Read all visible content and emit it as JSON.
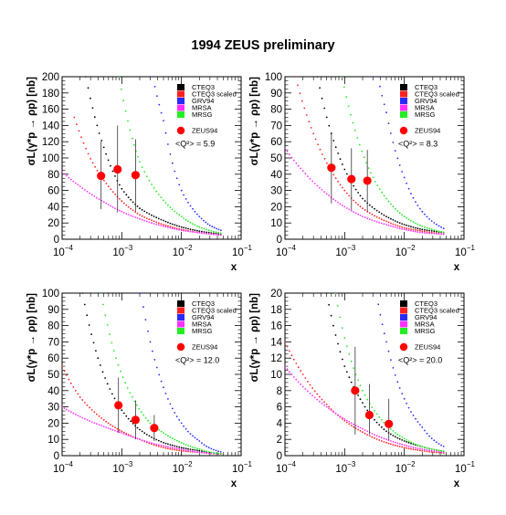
{
  "figure": {
    "title": "1994 ZEUS preliminary"
  },
  "colors": {
    "CTEQ3": "#000000",
    "CTEQ3 scaled": "#ff2020",
    "GRV94": "#2a2aff",
    "MRSA": "#ff30ff",
    "MRSG": "#22ee22",
    "ZEUS94": "#ff0000"
  },
  "chart_data": [
    {
      "type": "scatter",
      "panel": "top-left",
      "ylabel": "σL(γ*p → ρp) [nb]",
      "xlabel": "x",
      "x_scale": "log",
      "xlim": [
        0.0001,
        0.1
      ],
      "ylim": [
        0,
        200
      ],
      "y_ticks": [
        0,
        20,
        40,
        60,
        80,
        100,
        120,
        140,
        160,
        180,
        200
      ],
      "x_ticks": [
        "10-4",
        "10-3",
        "10-2",
        "10-1"
      ],
      "q2_label": "<Q²> = 5.9",
      "legend": [
        "CTEQ3",
        "CTEQ3 scaled",
        "GRV94",
        "MRSA",
        "MRSG",
        "ZEUS94"
      ],
      "series": [
        {
          "name": "CTEQ3",
          "x": [
            0.00025,
            0.0005,
            0.001,
            0.002,
            0.005,
            0.01,
            0.02,
            0.05
          ],
          "y": [
            200,
            113,
            62,
            38,
            23,
            15,
            10,
            6
          ]
        },
        {
          "name": "CTEQ3 scaled",
          "x": [
            0.00016,
            0.0003,
            0.0006,
            0.001,
            0.002,
            0.005,
            0.01,
            0.02,
            0.05
          ],
          "y": [
            150,
            99,
            65,
            47,
            30,
            18,
            12,
            8,
            5
          ]
        },
        {
          "name": "GRV94",
          "x": [
            0.0033,
            0.005,
            0.01,
            0.02,
            0.03,
            0.05
          ],
          "y": [
            200,
            146,
            60,
            28,
            17,
            10
          ]
        },
        {
          "name": "MRSA",
          "x": [
            0.0001,
            0.0002,
            0.0005,
            0.001,
            0.002,
            0.005,
            0.01,
            0.02,
            0.05
          ],
          "y": [
            83,
            65,
            46,
            34,
            25,
            16,
            11,
            8,
            5
          ]
        },
        {
          "name": "MRSG",
          "x": [
            0.0009,
            0.0015,
            0.002,
            0.005,
            0.01,
            0.02,
            0.05
          ],
          "y": [
            200,
            124,
            95,
            48,
            28,
            15,
            7
          ]
        },
        {
          "name": "ZEUS94",
          "x": [
            0.00045,
            0.00085,
            0.0017
          ],
          "y": [
            78,
            86,
            79
          ],
          "yerr_low": [
            37,
            33,
            34
          ],
          "yerr_high": [
            120,
            140,
            123
          ]
        }
      ]
    },
    {
      "type": "scatter",
      "panel": "top-right",
      "ylabel": "σL(γ*p → ρp) [nb]",
      "xlabel": "x",
      "x_scale": "log",
      "xlim": [
        0.0001,
        0.1
      ],
      "ylim": [
        0,
        100
      ],
      "y_ticks": [
        0,
        10,
        20,
        30,
        40,
        50,
        60,
        70,
        80,
        90,
        100
      ],
      "x_ticks": [
        "10-4",
        "10-3",
        "10-2",
        "10-1"
      ],
      "q2_label": "<Q²> = 8.3",
      "legend": [
        "CTEQ3",
        "CTEQ3 scaled",
        "GRV94",
        "MRSA",
        "MRSG",
        "ZEUS94"
      ],
      "series": [
        {
          "name": "CTEQ3",
          "x": [
            0.00035,
            0.0006,
            0.001,
            0.002,
            0.005,
            0.01,
            0.02,
            0.05
          ],
          "y": [
            100,
            65,
            43,
            25,
            14,
            9,
            6,
            4
          ]
        },
        {
          "name": "CTEQ3 scaled",
          "x": [
            0.00015,
            0.0003,
            0.0006,
            0.001,
            0.002,
            0.005,
            0.01,
            0.02,
            0.05
          ],
          "y": [
            100,
            65,
            42,
            30,
            19,
            11,
            7,
            5,
            3
          ]
        },
        {
          "name": "GRV94",
          "x": [
            0.0036,
            0.005,
            0.01,
            0.02,
            0.05
          ],
          "y": [
            100,
            78,
            38,
            17,
            6
          ]
        },
        {
          "name": "MRSA",
          "x": [
            0.0001,
            0.0002,
            0.0005,
            0.001,
            0.002,
            0.005,
            0.01,
            0.02,
            0.05
          ],
          "y": [
            56,
            42,
            28,
            20,
            14,
            9,
            6,
            4,
            3
          ]
        },
        {
          "name": "MRSG",
          "x": [
            0.0009,
            0.0015,
            0.003,
            0.005,
            0.01,
            0.02,
            0.05
          ],
          "y": [
            100,
            67,
            38,
            25,
            14,
            8,
            4
          ]
        },
        {
          "name": "ZEUS94",
          "x": [
            0.0006,
            0.0013,
            0.0024
          ],
          "y": [
            44,
            37,
            36
          ],
          "yerr_low": [
            22,
            18,
            17
          ],
          "yerr_high": [
            66,
            56,
            55
          ]
        }
      ]
    },
    {
      "type": "scatter",
      "panel": "bottom-left",
      "ylabel": "σL(γ*p → ρp) [nb]",
      "xlabel": "x",
      "x_scale": "log",
      "xlim": [
        0.0001,
        0.1
      ],
      "ylim": [
        0,
        100
      ],
      "y_ticks": [
        0,
        10,
        20,
        30,
        40,
        50,
        60,
        70,
        80,
        90,
        100
      ],
      "x_ticks": [
        "10-4",
        "10-3",
        "10-2",
        "10-1"
      ],
      "q2_label": "<Q²> = 12.0",
      "legend": [
        "CTEQ3",
        "CTEQ3 scaled",
        "GRV94",
        "MRSA",
        "MRSG",
        "ZEUS94"
      ],
      "series": [
        {
          "name": "CTEQ3",
          "x": [
            0.00022,
            0.0004,
            0.001,
            0.002,
            0.005,
            0.01,
            0.02,
            0.05
          ],
          "y": [
            100,
            60,
            28,
            16,
            8,
            5,
            3,
            1
          ]
        },
        {
          "name": "CTEQ3 scaled",
          "x": [
            0.0001,
            0.0002,
            0.0005,
            0.001,
            0.002,
            0.005,
            0.01,
            0.02,
            0.05
          ],
          "y": [
            55,
            36,
            22,
            15,
            10,
            5,
            3,
            2,
            1
          ]
        },
        {
          "name": "GRV94",
          "x": [
            0.0021,
            0.003,
            0.005,
            0.01,
            0.02,
            0.05
          ],
          "y": [
            100,
            70,
            42,
            20,
            9,
            2
          ]
        },
        {
          "name": "MRSA",
          "x": [
            0.0001,
            0.0002,
            0.0005,
            0.001,
            0.002,
            0.005,
            0.01,
            0.02,
            0.05
          ],
          "y": [
            30,
            24,
            18,
            14,
            10,
            6,
            4,
            2,
            1
          ]
        },
        {
          "name": "MRSG",
          "x": [
            0.00045,
            0.0008,
            0.0015,
            0.003,
            0.005,
            0.01,
            0.02,
            0.05
          ],
          "y": [
            100,
            60,
            36,
            20,
            14,
            8,
            4,
            1
          ]
        },
        {
          "name": "ZEUS94",
          "x": [
            0.00088,
            0.0017,
            0.0035
          ],
          "y": [
            31,
            22,
            17
          ],
          "yerr_low": [
            14,
            10,
            9
          ],
          "yerr_high": [
            48,
            34,
            25
          ]
        }
      ]
    },
    {
      "type": "scatter",
      "panel": "bottom-right",
      "ylabel": "σL(γ*p → ρp) [nb]",
      "xlabel": "x",
      "x_scale": "log",
      "xlim": [
        0.0001,
        0.1
      ],
      "ylim": [
        0,
        20
      ],
      "y_ticks": [
        0,
        2,
        4,
        6,
        8,
        10,
        12,
        14,
        16,
        18,
        20
      ],
      "x_ticks": [
        "10-4",
        "10-3",
        "10-2",
        "10-1"
      ],
      "q2_label": "<Q²> = 20.0",
      "legend": [
        "CTEQ3",
        "CTEQ3 scaled",
        "GRV94",
        "MRSA",
        "MRSG",
        "ZEUS94"
      ],
      "series": [
        {
          "name": "CTEQ3",
          "x": [
            0.0005,
            0.001,
            0.002,
            0.005,
            0.01,
            0.02,
            0.05
          ],
          "y": [
            20,
            11,
            6.5,
            3,
            1.8,
            1.1,
            0.5
          ]
        },
        {
          "name": "CTEQ3 scaled",
          "x": [
            0.0001,
            0.0002,
            0.0005,
            0.001,
            0.002,
            0.005,
            0.01,
            0.02,
            0.05
          ],
          "y": [
            14,
            10,
            6.3,
            4.3,
            2.9,
            1.6,
            1,
            0.6,
            0.3
          ]
        },
        {
          "name": "GRV94",
          "x": [
            0.0034,
            0.005,
            0.01,
            0.02,
            0.05
          ],
          "y": [
            20,
            14,
            7,
            3.5,
            1
          ]
        },
        {
          "name": "MRSA",
          "x": [
            0.0001,
            0.0002,
            0.0005,
            0.001,
            0.002,
            0.005,
            0.01,
            0.02,
            0.05
          ],
          "y": [
            11,
            8.5,
            6,
            4.5,
            3.3,
            2,
            1.3,
            0.8,
            0.4
          ]
        },
        {
          "name": "MRSG",
          "x": [
            0.0007,
            0.001,
            0.002,
            0.005,
            0.01,
            0.02,
            0.05
          ],
          "y": [
            20,
            14.5,
            8,
            3.8,
            2.1,
            1.1,
            0.5
          ]
        },
        {
          "name": "ZEUS94",
          "x": [
            0.0015,
            0.0026,
            0.0055
          ],
          "y": [
            8,
            5,
            3.9
          ],
          "yerr_low": [
            2.6,
            2.6,
            1.9
          ],
          "yerr_high": [
            13.4,
            8.8,
            7.0
          ]
        }
      ]
    }
  ]
}
